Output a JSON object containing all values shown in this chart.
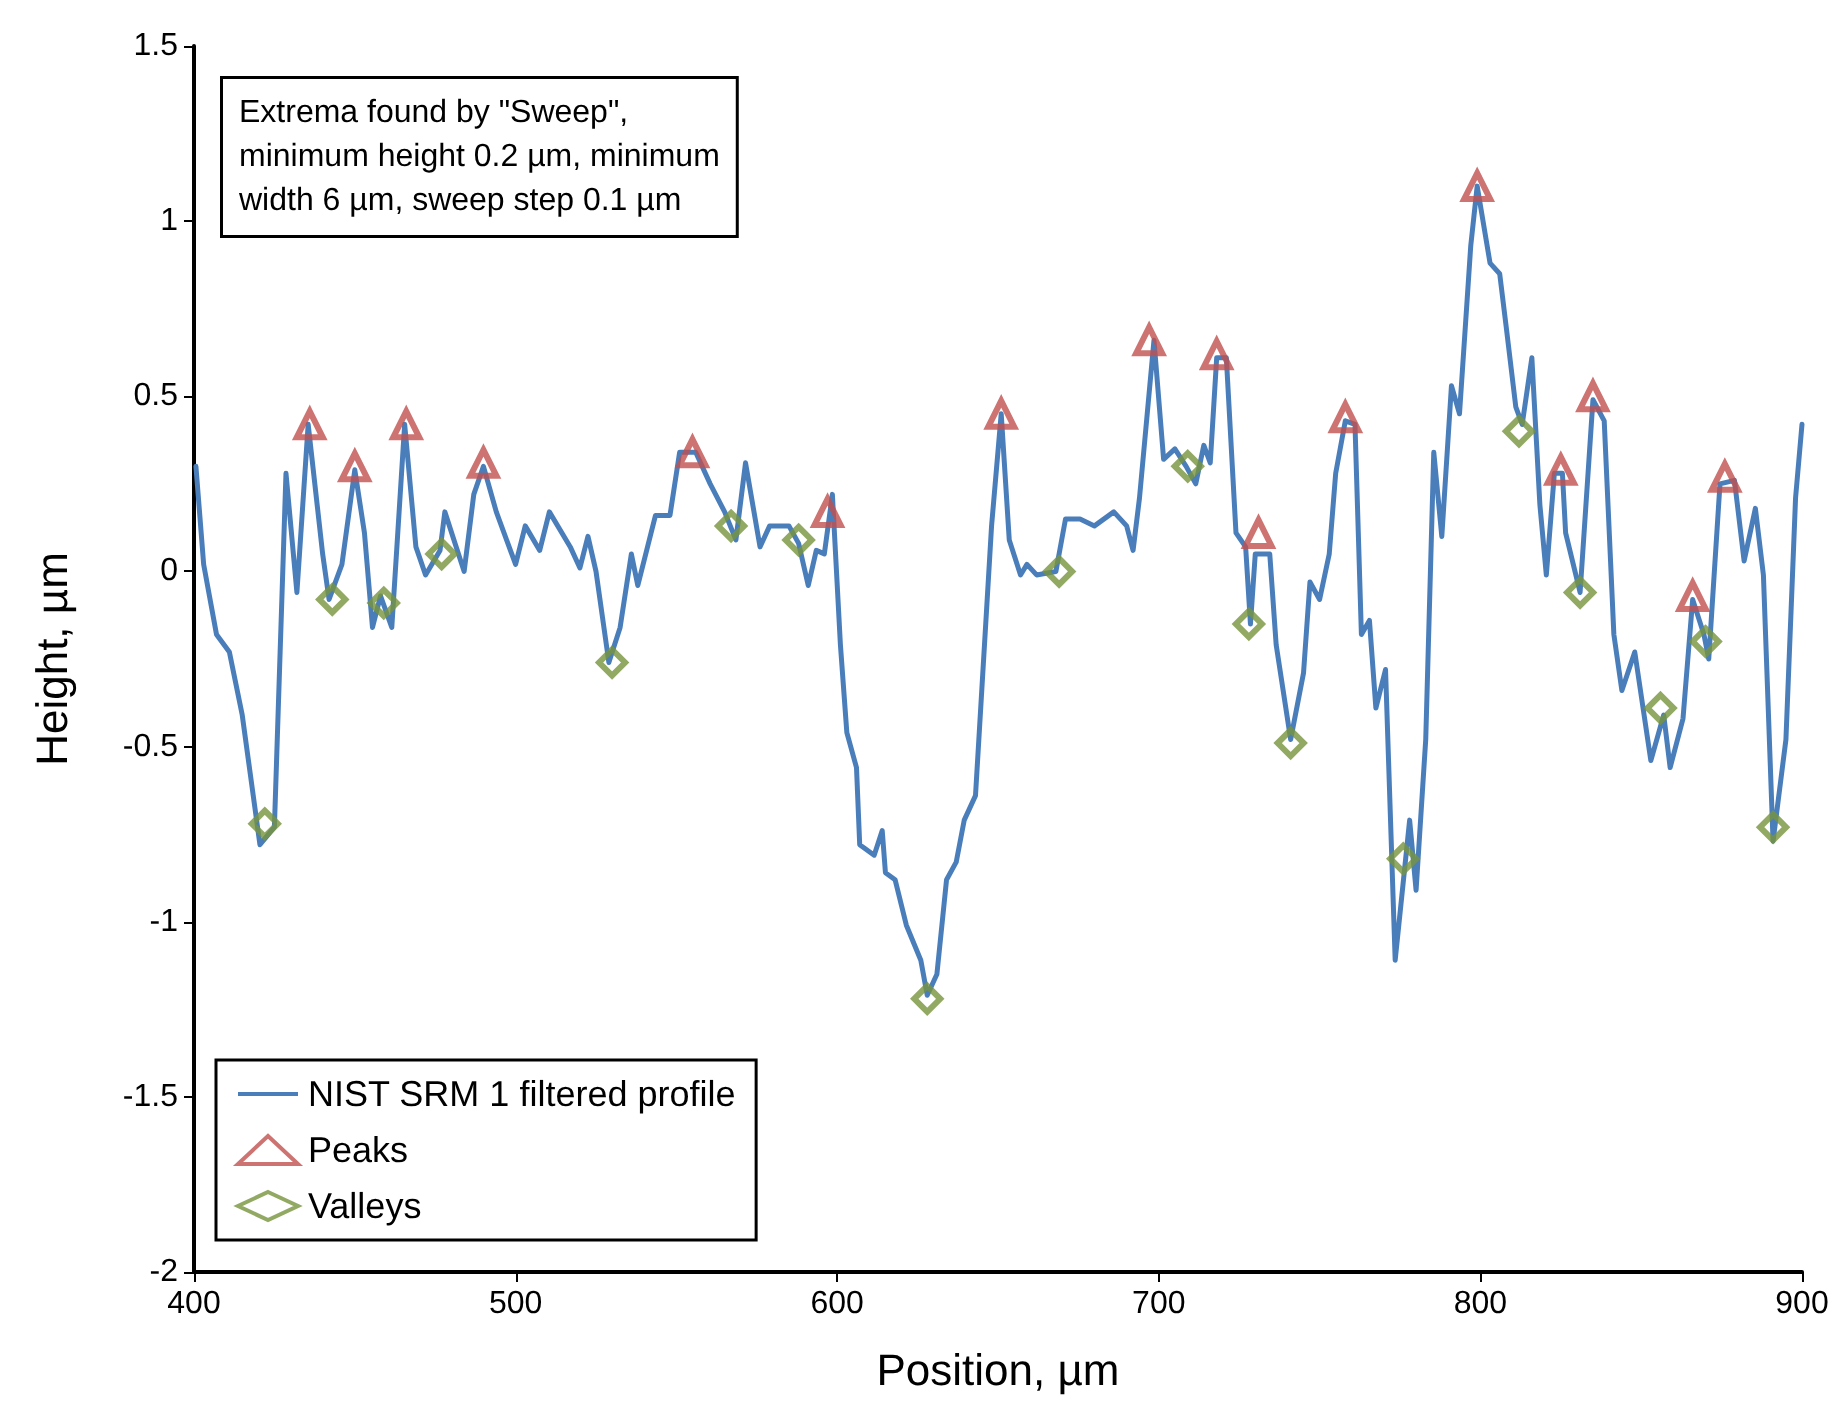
{
  "chart_data": {
    "type": "line",
    "xlabel": "Position, µm",
    "ylabel": "Height, µm",
    "xlim": [
      400,
      900
    ],
    "xticks": [
      400,
      500,
      600,
      700,
      800,
      900
    ],
    "ylim": [
      -2,
      1.5
    ],
    "yticks": [
      -2,
      -1.5,
      -1,
      -0.5,
      0,
      0.5,
      1,
      1.5
    ],
    "grid": false,
    "legend": "bottom left",
    "annotations": [
      "Extrema found by \"Sweep\",\nminimum height 0.2 µm, minimum\nwidth 6 µm, sweep step 0.1 µm"
    ],
    "series": [
      {
        "name": "NIST SRM 1 filtered profile",
        "color": "#4a7ebb",
        "marker": "none",
        "line_style": "solid",
        "x": [
          400.6,
          403,
          407,
          411,
          415,
          420.5,
          425,
          428.6,
          432,
          435.5,
          440,
          442,
          446,
          450,
          453,
          455.5,
          458,
          461.5,
          465.5,
          469,
          472,
          476.5,
          478,
          484,
          487,
          490,
          494,
          500,
          503,
          507.5,
          510.5,
          517,
          520,
          522.5,
          525,
          529,
          532.5,
          536,
          538,
          543.5,
          548,
          551,
          556,
          560.5,
          565,
          568.5,
          571.5,
          576,
          579,
          585,
          588,
          591,
          593.5,
          596,
          598.5,
          601,
          603,
          606,
          607,
          611.5,
          614,
          615,
          618,
          621.5,
          626,
          628,
          631,
          634,
          637,
          639.5,
          643,
          648,
          651,
          653.5,
          657,
          659,
          662,
          668,
          671,
          675.5,
          680,
          686,
          690,
          692,
          694,
          698.5,
          701.5,
          705,
          708.5,
          711.5,
          714,
          716,
          718,
          721,
          724,
          727,
          728.5,
          730,
          734.5,
          736.5,
          741,
          745,
          747,
          750,
          753,
          755,
          758,
          761,
          763,
          765.5,
          767.5,
          770.5,
          773.5,
          778,
          780,
          783,
          785.5,
          788,
          791,
          793.5,
          797,
          799,
          803,
          806,
          808,
          811,
          813,
          816,
          818.5,
          820.5,
          823,
          825.5,
          826.5,
          831,
          835,
          838.5,
          841.5,
          844,
          848,
          853,
          857,
          859,
          863,
          866,
          869.5,
          871,
          874.5,
          879,
          882,
          885.5,
          888,
          891,
          895,
          898,
          900
        ],
        "values": [
          0.3,
          0.02,
          -0.18,
          -0.23,
          -0.41,
          -0.78,
          -0.73,
          0.28,
          -0.06,
          0.42,
          0.05,
          -0.08,
          0.02,
          0.29,
          0.11,
          -0.16,
          -0.07,
          -0.16,
          0.42,
          0.07,
          -0.01,
          0.06,
          0.17,
          0.0,
          0.22,
          0.3,
          0.17,
          0.02,
          0.13,
          0.06,
          0.17,
          0.07,
          0.01,
          0.1,
          0.0,
          -0.26,
          -0.16,
          0.05,
          -0.04,
          0.16,
          0.16,
          0.34,
          0.34,
          0.25,
          0.17,
          0.09,
          0.31,
          0.07,
          0.13,
          0.13,
          0.08,
          -0.04,
          0.06,
          0.05,
          0.22,
          -0.21,
          -0.46,
          -0.56,
          -0.78,
          -0.81,
          -0.74,
          -0.86,
          -0.88,
          -1.01,
          -1.11,
          -1.21,
          -1.15,
          -0.88,
          -0.83,
          -0.71,
          -0.64,
          0.13,
          0.45,
          0.09,
          -0.01,
          0.02,
          -0.01,
          0.0,
          0.15,
          0.15,
          0.13,
          0.17,
          0.13,
          0.06,
          0.21,
          0.66,
          0.32,
          0.35,
          0.3,
          0.25,
          0.36,
          0.31,
          0.61,
          0.61,
          0.11,
          0.07,
          -0.15,
          0.05,
          0.05,
          -0.21,
          -0.48,
          -0.29,
          -0.03,
          -0.08,
          0.05,
          0.28,
          0.43,
          0.42,
          -0.18,
          -0.14,
          -0.39,
          -0.28,
          -1.11,
          -0.71,
          -0.91,
          -0.48,
          0.34,
          0.1,
          0.53,
          0.45,
          0.93,
          1.1,
          0.88,
          0.85,
          0.7,
          0.47,
          0.42,
          0.61,
          0.19,
          -0.01,
          0.28,
          0.28,
          0.11,
          -0.06,
          0.49,
          0.43,
          -0.18,
          -0.34,
          -0.23,
          -0.54,
          -0.41,
          -0.56,
          -0.42,
          -0.08,
          -0.18,
          -0.25,
          0.25,
          0.26,
          0.03,
          0.18,
          -0.01,
          -0.77,
          -0.48,
          0.21,
          0.42
        ]
      },
      {
        "name": "Peaks",
        "type": "scatter",
        "color": "#c0504d",
        "marker": "triangle",
        "x": [
          436,
          450,
          466,
          490,
          555,
          597,
          651,
          697,
          718,
          731,
          758,
          799,
          825,
          835,
          866,
          876
        ],
        "values": [
          0.42,
          0.3,
          0.42,
          0.31,
          0.34,
          0.17,
          0.45,
          0.66,
          0.62,
          0.11,
          0.44,
          1.1,
          0.29,
          0.5,
          -0.07,
          0.27
        ]
      },
      {
        "name": "Valleys",
        "type": "scatter",
        "color": "#77933c",
        "marker": "diamond",
        "x": [
          422,
          443,
          459,
          477,
          530,
          567,
          588,
          628,
          669,
          709,
          728,
          741,
          776,
          812,
          831,
          856,
          870,
          891
        ],
        "values": [
          -0.72,
          -0.08,
          -0.09,
          0.05,
          -0.26,
          0.13,
          0.09,
          -1.22,
          0.0,
          0.3,
          -0.15,
          -0.49,
          -0.82,
          0.4,
          -0.06,
          -0.39,
          -0.2,
          -0.73
        ]
      }
    ]
  }
}
